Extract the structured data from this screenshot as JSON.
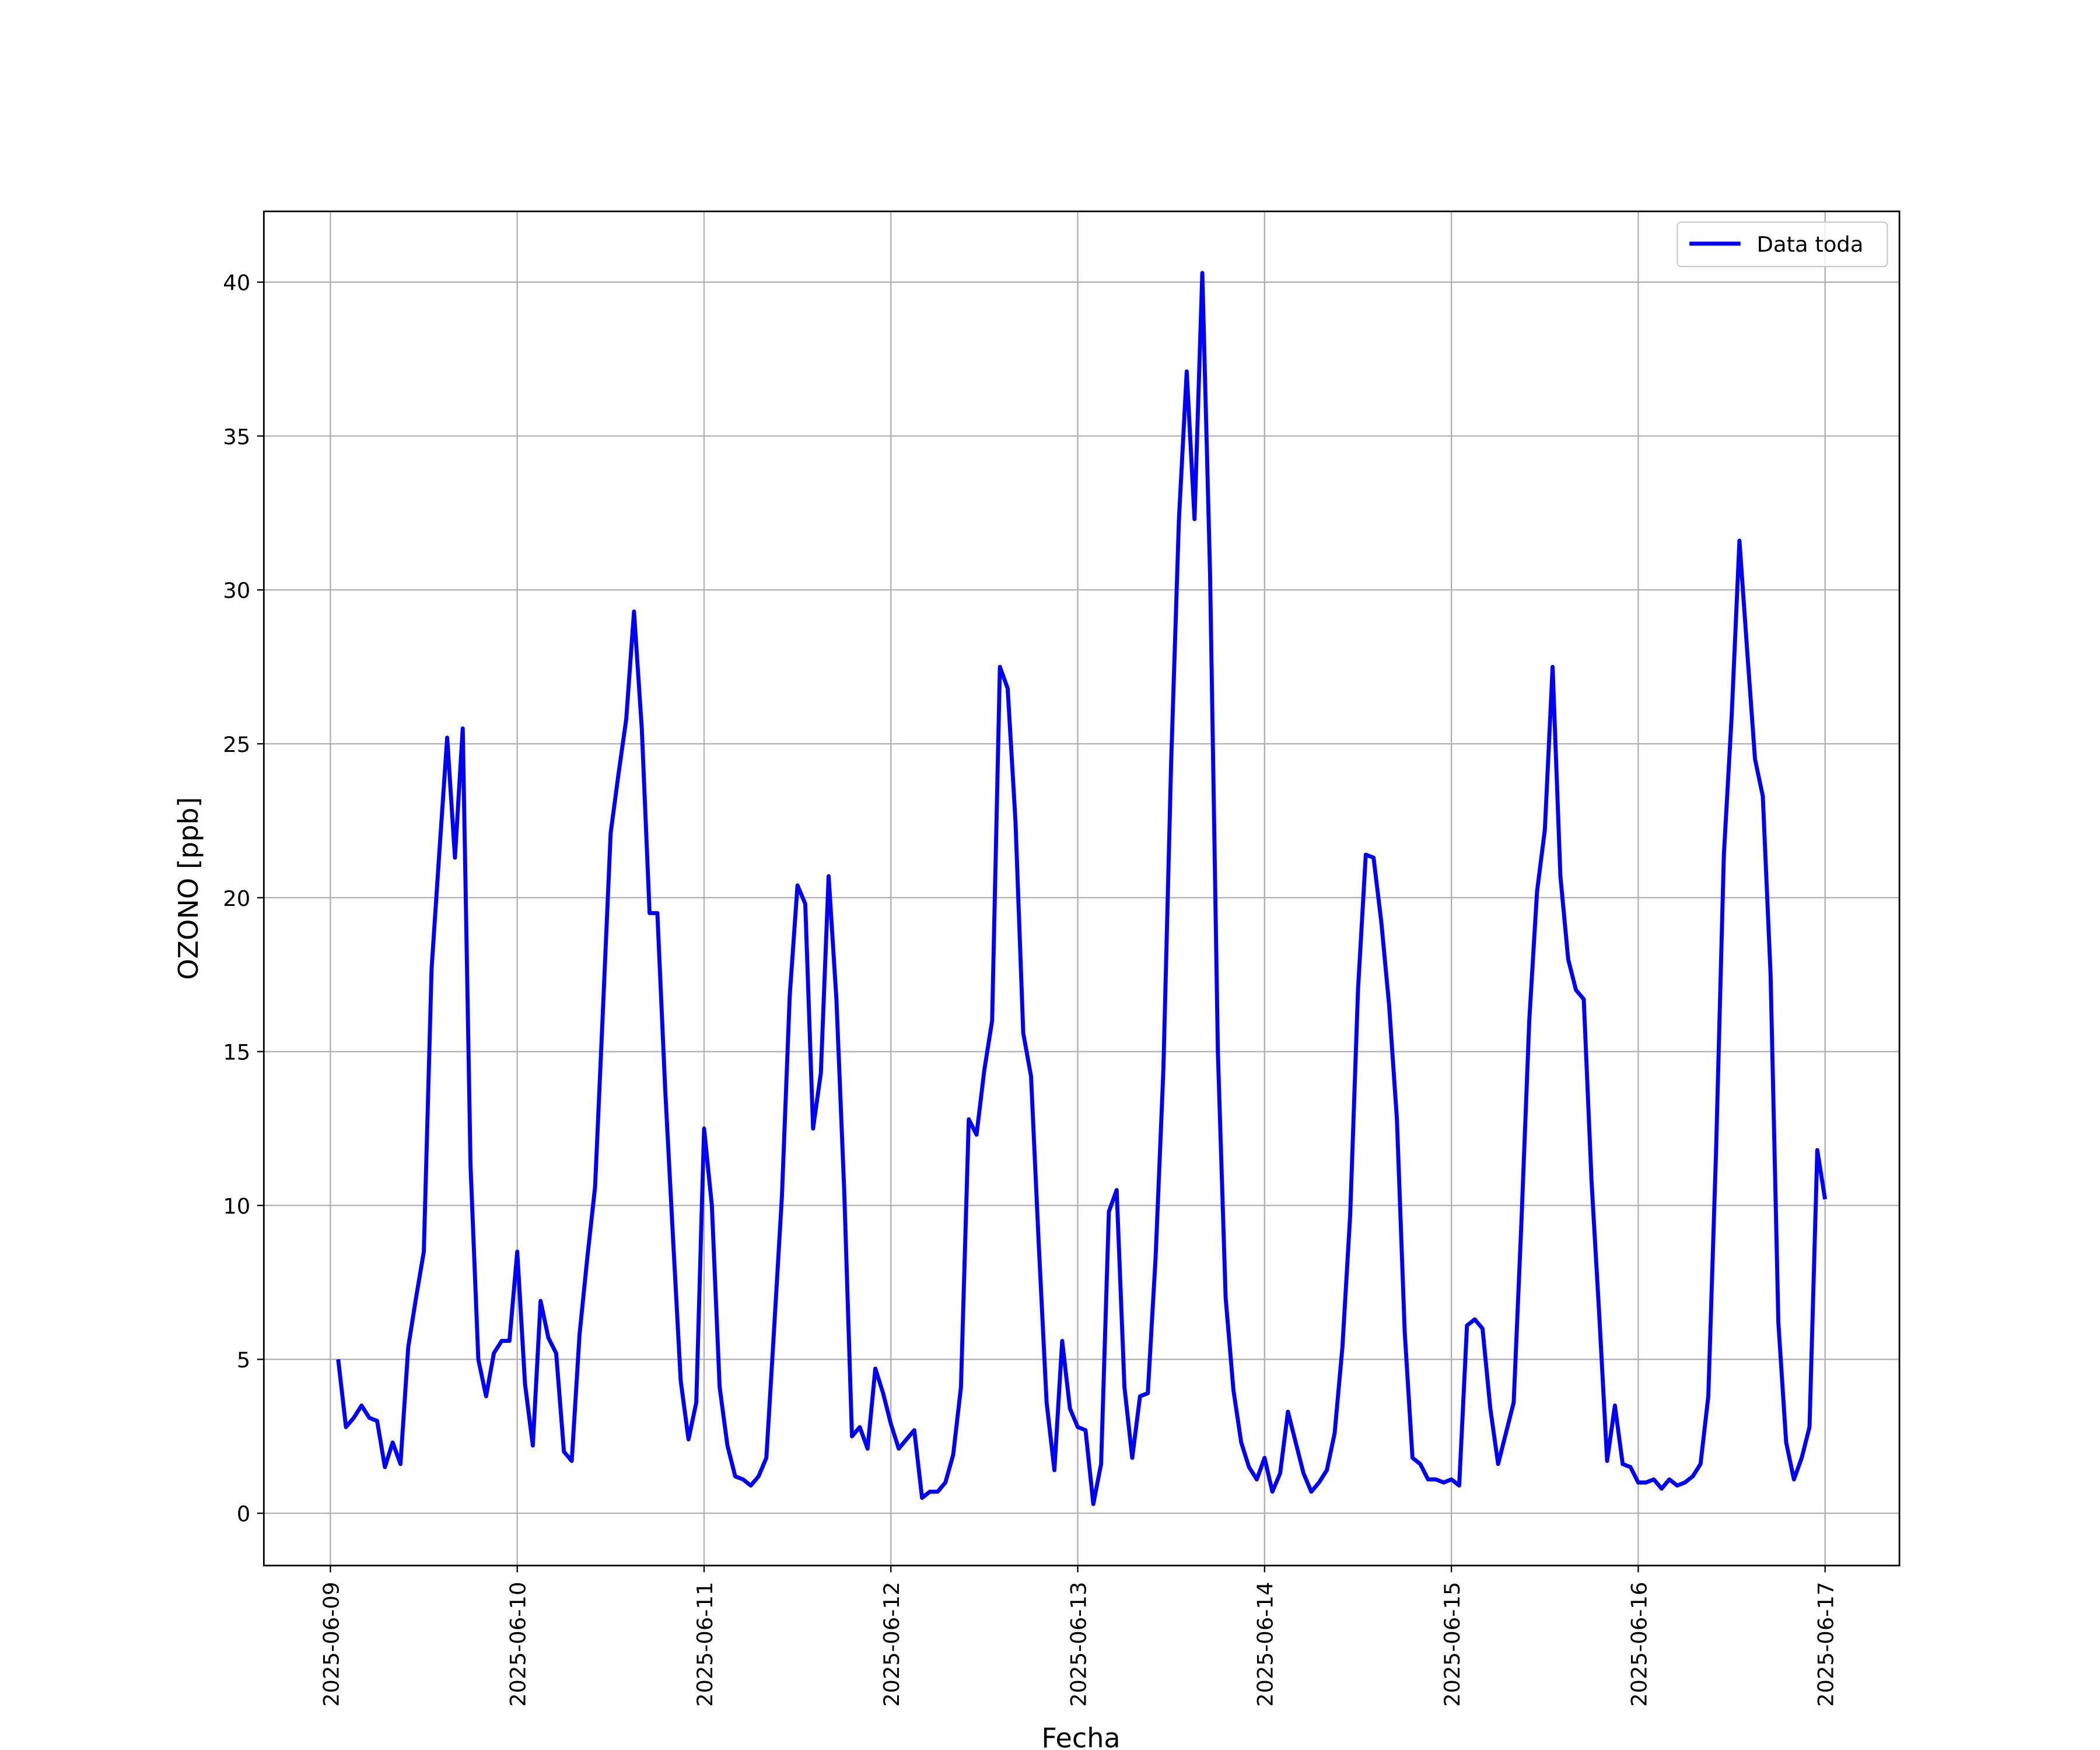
{
  "chart_data": {
    "type": "line",
    "x_label": "Fecha",
    "y_label": "OZONO [ppb]",
    "x": [
      "2025-06-09T01:00",
      "2025-06-09T02:00",
      "2025-06-09T03:00",
      "2025-06-09T04:00",
      "2025-06-09T05:00",
      "2025-06-09T06:00",
      "2025-06-09T07:00",
      "2025-06-09T08:00",
      "2025-06-09T09:00",
      "2025-06-09T10:00",
      "2025-06-09T11:00",
      "2025-06-09T12:00",
      "2025-06-09T13:00",
      "2025-06-09T14:00",
      "2025-06-09T15:00",
      "2025-06-09T16:00",
      "2025-06-09T17:00",
      "2025-06-09T18:00",
      "2025-06-09T19:00",
      "2025-06-09T20:00",
      "2025-06-09T21:00",
      "2025-06-09T22:00",
      "2025-06-09T23:00",
      "2025-06-10T00:00",
      "2025-06-10T01:00",
      "2025-06-10T02:00",
      "2025-06-10T03:00",
      "2025-06-10T04:00",
      "2025-06-10T05:00",
      "2025-06-10T06:00",
      "2025-06-10T07:00",
      "2025-06-10T08:00",
      "2025-06-10T09:00",
      "2025-06-10T10:00",
      "2025-06-10T11:00",
      "2025-06-10T12:00",
      "2025-06-10T13:00",
      "2025-06-10T14:00",
      "2025-06-10T15:00",
      "2025-06-10T16:00",
      "2025-06-10T17:00",
      "2025-06-10T18:00",
      "2025-06-10T19:00",
      "2025-06-10T20:00",
      "2025-06-10T21:00",
      "2025-06-10T22:00",
      "2025-06-10T23:00",
      "2025-06-11T00:00",
      "2025-06-11T01:00",
      "2025-06-11T02:00",
      "2025-06-11T03:00",
      "2025-06-11T04:00",
      "2025-06-11T05:00",
      "2025-06-11T06:00",
      "2025-06-11T07:00",
      "2025-06-11T08:00",
      "2025-06-11T09:00",
      "2025-06-11T10:00",
      "2025-06-11T11:00",
      "2025-06-11T12:00",
      "2025-06-11T13:00",
      "2025-06-11T14:00",
      "2025-06-11T15:00",
      "2025-06-11T16:00",
      "2025-06-11T17:00",
      "2025-06-11T18:00",
      "2025-06-11T19:00",
      "2025-06-11T20:00",
      "2025-06-11T21:00",
      "2025-06-11T22:00",
      "2025-06-11T23:00",
      "2025-06-12T00:00",
      "2025-06-12T01:00",
      "2025-06-12T02:00",
      "2025-06-12T03:00",
      "2025-06-12T04:00",
      "2025-06-12T05:00",
      "2025-06-12T06:00",
      "2025-06-12T07:00",
      "2025-06-12T08:00",
      "2025-06-12T09:00",
      "2025-06-12T10:00",
      "2025-06-12T11:00",
      "2025-06-12T12:00",
      "2025-06-12T13:00",
      "2025-06-12T14:00",
      "2025-06-12T15:00",
      "2025-06-12T16:00",
      "2025-06-12T17:00",
      "2025-06-12T18:00",
      "2025-06-12T19:00",
      "2025-06-12T20:00",
      "2025-06-12T21:00",
      "2025-06-12T22:00",
      "2025-06-12T23:00",
      "2025-06-13T00:00",
      "2025-06-13T01:00",
      "2025-06-13T02:00",
      "2025-06-13T03:00",
      "2025-06-13T04:00",
      "2025-06-13T05:00",
      "2025-06-13T06:00",
      "2025-06-13T07:00",
      "2025-06-13T08:00",
      "2025-06-13T09:00",
      "2025-06-13T10:00",
      "2025-06-13T11:00",
      "2025-06-13T12:00",
      "2025-06-13T13:00",
      "2025-06-13T14:00",
      "2025-06-13T15:00",
      "2025-06-13T16:00",
      "2025-06-13T17:00",
      "2025-06-13T18:00",
      "2025-06-13T19:00",
      "2025-06-13T20:00",
      "2025-06-13T21:00",
      "2025-06-13T22:00",
      "2025-06-13T23:00",
      "2025-06-14T00:00",
      "2025-06-14T01:00",
      "2025-06-14T02:00",
      "2025-06-14T03:00",
      "2025-06-14T04:00",
      "2025-06-14T05:00",
      "2025-06-14T06:00",
      "2025-06-14T07:00",
      "2025-06-14T08:00",
      "2025-06-14T09:00",
      "2025-06-14T10:00",
      "2025-06-14T11:00",
      "2025-06-14T12:00",
      "2025-06-14T13:00",
      "2025-06-14T14:00",
      "2025-06-14T15:00",
      "2025-06-14T16:00",
      "2025-06-14T17:00",
      "2025-06-14T18:00",
      "2025-06-14T19:00",
      "2025-06-14T20:00",
      "2025-06-14T21:00",
      "2025-06-14T22:00",
      "2025-06-14T23:00",
      "2025-06-15T00:00",
      "2025-06-15T01:00",
      "2025-06-15T02:00",
      "2025-06-15T03:00",
      "2025-06-15T04:00",
      "2025-06-15T05:00",
      "2025-06-15T06:00",
      "2025-06-15T07:00",
      "2025-06-15T08:00",
      "2025-06-15T09:00",
      "2025-06-15T10:00",
      "2025-06-15T11:00",
      "2025-06-15T12:00",
      "2025-06-15T13:00",
      "2025-06-15T14:00",
      "2025-06-15T15:00",
      "2025-06-15T16:00",
      "2025-06-15T17:00",
      "2025-06-15T18:00",
      "2025-06-15T19:00",
      "2025-06-15T20:00",
      "2025-06-15T21:00",
      "2025-06-15T22:00",
      "2025-06-15T23:00",
      "2025-06-16T00:00",
      "2025-06-16T01:00",
      "2025-06-16T02:00",
      "2025-06-16T03:00",
      "2025-06-16T04:00",
      "2025-06-16T05:00",
      "2025-06-16T06:00",
      "2025-06-16T07:00",
      "2025-06-16T08:00",
      "2025-06-16T09:00",
      "2025-06-16T10:00",
      "2025-06-16T11:00",
      "2025-06-16T12:00",
      "2025-06-16T13:00",
      "2025-06-16T14:00",
      "2025-06-16T15:00",
      "2025-06-16T16:00",
      "2025-06-16T17:00",
      "2025-06-16T18:00",
      "2025-06-16T19:00",
      "2025-06-16T20:00",
      "2025-06-16T21:00",
      "2025-06-16T22:00",
      "2025-06-16T23:00",
      "2025-06-17T00:00"
    ],
    "series": [
      {
        "name": "Data toda",
        "color": "#0000ff",
        "values": [
          5.0,
          2.8,
          3.1,
          3.5,
          3.1,
          3.0,
          1.5,
          2.3,
          1.6,
          5.4,
          7.0,
          8.5,
          17.7,
          21.5,
          25.2,
          21.3,
          25.5,
          11.3,
          5.0,
          3.8,
          5.2,
          5.6,
          5.6,
          8.5,
          4.2,
          2.2,
          6.9,
          5.7,
          5.2,
          2.0,
          1.7,
          5.8,
          8.3,
          10.6,
          16.3,
          22.1,
          24.0,
          25.8,
          29.3,
          25.5,
          19.5,
          19.5,
          13.8,
          9.0,
          4.3,
          2.4,
          3.6,
          12.5,
          10.0,
          4.1,
          2.2,
          1.2,
          1.1,
          0.9,
          1.2,
          1.8,
          6.0,
          10.3,
          16.8,
          20.4,
          19.8,
          12.5,
          14.3,
          20.7,
          16.7,
          10.5,
          2.5,
          2.8,
          2.1,
          4.7,
          3.9,
          2.9,
          2.1,
          2.4,
          2.7,
          0.5,
          0.7,
          0.7,
          1.0,
          1.9,
          4.1,
          12.8,
          12.3,
          14.4,
          16.0,
          27.5,
          26.8,
          22.5,
          15.6,
          14.2,
          8.7,
          3.6,
          1.4,
          5.6,
          3.4,
          2.8,
          2.7,
          0.3,
          1.6,
          9.8,
          10.5,
          4.1,
          1.8,
          3.8,
          3.9,
          8.3,
          14.4,
          24.4,
          32.3,
          37.1,
          32.3,
          40.3,
          30.5,
          15.0,
          7.0,
          4.0,
          2.3,
          1.5,
          1.1,
          1.8,
          0.7,
          1.3,
          3.3,
          2.3,
          1.3,
          0.7,
          1.0,
          1.4,
          2.6,
          5.4,
          9.7,
          17.0,
          21.4,
          21.3,
          19.2,
          16.5,
          12.8,
          5.9,
          1.8,
          1.6,
          1.1,
          1.1,
          1.0,
          1.1,
          0.9,
          6.1,
          6.3,
          6.0,
          3.4,
          1.6,
          2.6,
          3.6,
          9.5,
          16.0,
          20.2,
          22.2,
          27.5,
          20.7,
          18.0,
          17.0,
          16.7,
          10.8,
          6.4,
          1.7,
          3.5,
          1.6,
          1.5,
          1.0,
          1.0,
          1.1,
          0.8,
          1.1,
          0.9,
          1.0,
          1.2,
          1.6,
          3.8,
          11.8,
          21.4,
          25.9,
          31.6,
          28.0,
          24.5,
          23.3,
          17.5,
          6.2,
          2.3,
          1.1,
          1.8,
          2.8,
          11.8,
          10.2
        ]
      }
    ],
    "xlim": [
      "2025-06-08T15:27",
      "2025-06-17T09:33"
    ],
    "xticks": [
      "2025-06-09",
      "2025-06-10",
      "2025-06-11",
      "2025-06-12",
      "2025-06-13",
      "2025-06-14",
      "2025-06-15",
      "2025-06-16",
      "2025-06-17"
    ],
    "ylim": [
      -1.7,
      42.3
    ],
    "yticks": [
      0,
      5,
      10,
      15,
      20,
      25,
      30,
      35,
      40
    ],
    "grid": true,
    "legend": "upper right"
  }
}
